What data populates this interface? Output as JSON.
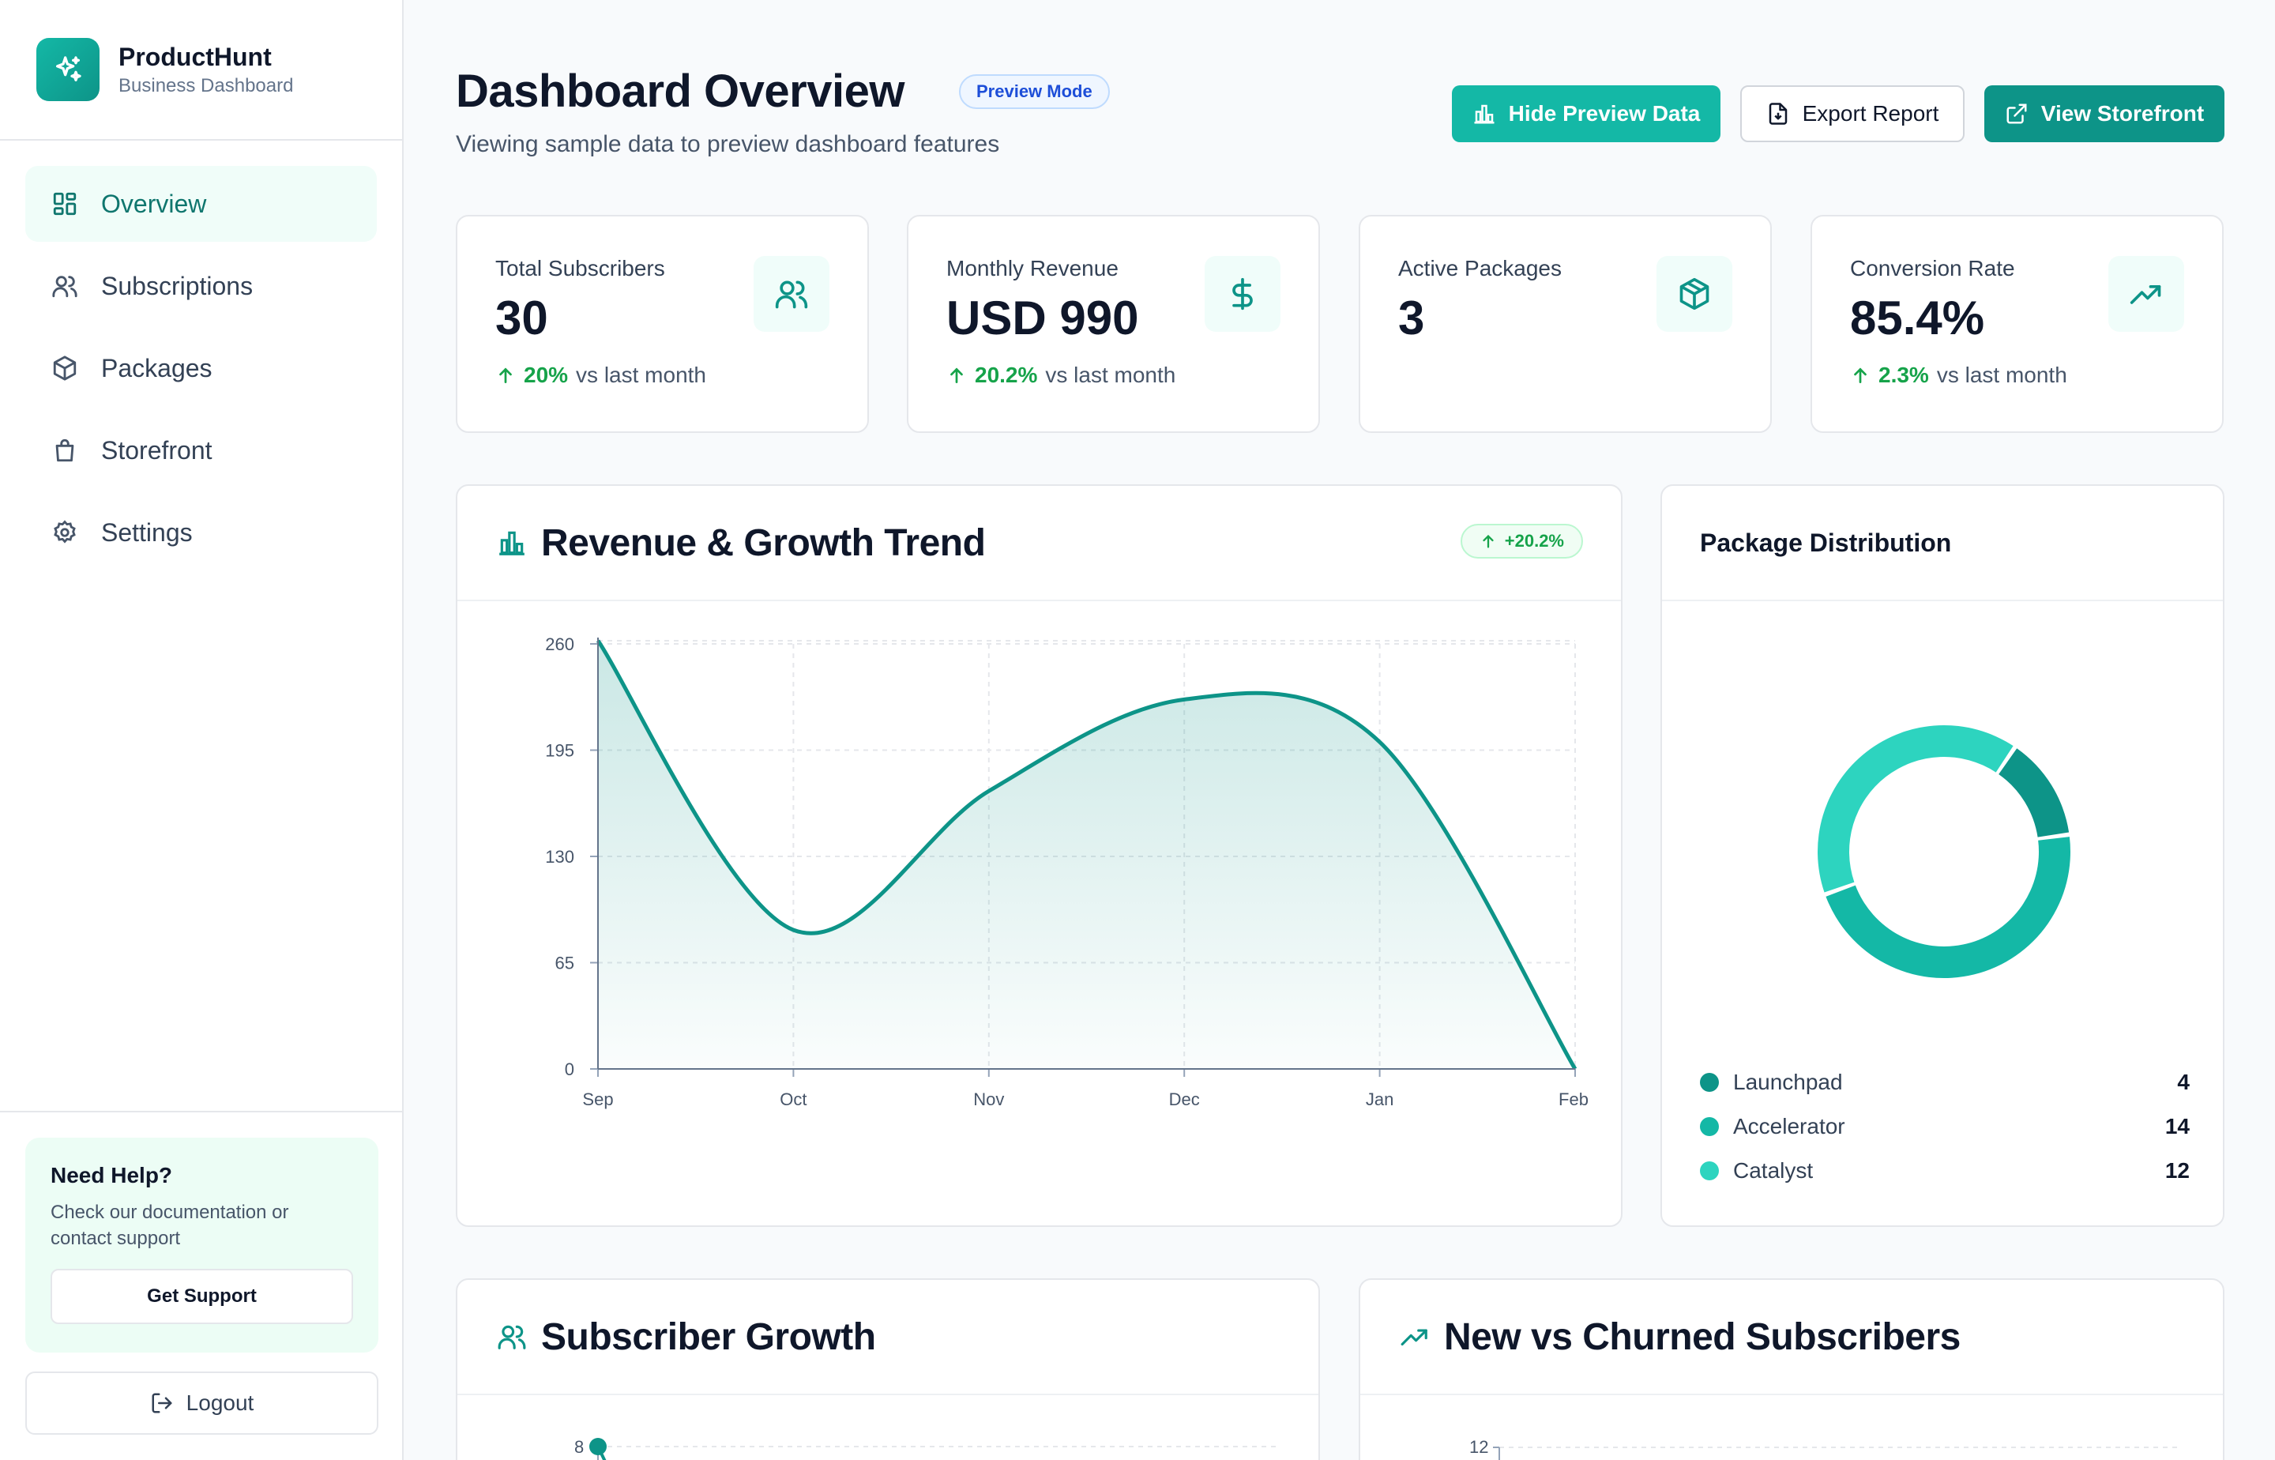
{
  "brand": {
    "name": "ProductHunt",
    "subtitle": "Business Dashboard"
  },
  "nav": [
    {
      "label": "Overview",
      "icon": "dashboard-icon",
      "active": true
    },
    {
      "label": "Subscriptions",
      "icon": "users-icon"
    },
    {
      "label": "Packages",
      "icon": "package-icon"
    },
    {
      "label": "Storefront",
      "icon": "shopping-bag-icon"
    },
    {
      "label": "Settings",
      "icon": "gear-icon"
    }
  ],
  "help": {
    "title": "Need Help?",
    "text": "Check our documentation or contact support",
    "button": "Get Support"
  },
  "logout": "Logout",
  "header": {
    "title": "Dashboard Overview",
    "badge": "Preview Mode",
    "subtitle": "Viewing sample data to preview dashboard features",
    "buttons": {
      "hide": "Hide Preview Data",
      "export": "Export Report",
      "storefront": "View Storefront"
    }
  },
  "stats": [
    {
      "label": "Total Subscribers",
      "value": "30",
      "delta": "20%",
      "delta_text": "vs last month",
      "icon": "users-icon"
    },
    {
      "label": "Monthly Revenue",
      "value": "USD 990",
      "delta": "20.2%",
      "delta_text": "vs last month",
      "icon": "dollar-icon"
    },
    {
      "label": "Active Packages",
      "value": "3",
      "icon": "package-icon"
    },
    {
      "label": "Conversion Rate",
      "value": "85.4%",
      "delta": "2.3%",
      "delta_text": "vs last month",
      "icon": "trending-up-icon"
    }
  ],
  "revenue": {
    "title": "Revenue & Growth Trend",
    "badge": "+20.2%"
  },
  "distribution": {
    "title": "Package Distribution",
    "items": [
      {
        "name": "Launchpad",
        "value": "4",
        "color": "#0d9488"
      },
      {
        "name": "Accelerator",
        "value": "14",
        "color": "#14b8a6"
      },
      {
        "name": "Catalyst",
        "value": "12",
        "color": "#2dd4bf"
      }
    ]
  },
  "subscriber_growth": {
    "title": "Subscriber Growth",
    "first_tick": "8"
  },
  "churn": {
    "title": "New vs Churned Subscribers",
    "first_tick": "12"
  },
  "chart_data": [
    {
      "type": "area",
      "title": "Revenue & Growth Trend",
      "categories": [
        "Sep",
        "Oct",
        "Nov",
        "Dec",
        "Jan",
        "Feb"
      ],
      "values": [
        262,
        85,
        170,
        226,
        200,
        0
      ],
      "ylim": [
        0,
        260
      ],
      "yticks": [
        "0",
        "65",
        "130",
        "195",
        "260"
      ],
      "grid": true,
      "color": "#0d9488"
    },
    {
      "type": "pie",
      "title": "Package Distribution",
      "categories": [
        "Launchpad",
        "Accelerator",
        "Catalyst"
      ],
      "values": [
        4,
        14,
        12
      ],
      "colors": [
        "#0d9488",
        "#14b8a6",
        "#2dd4bf"
      ],
      "donut": true
    }
  ]
}
